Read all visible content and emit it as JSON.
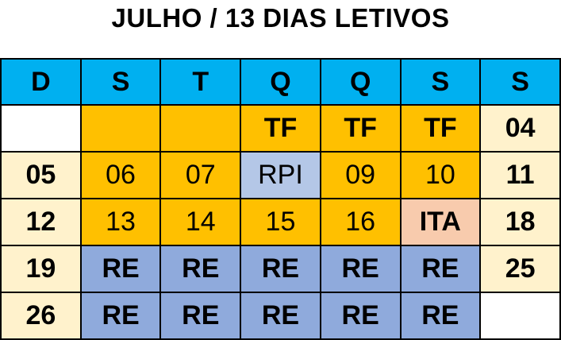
{
  "title": "JULHO / 13 DIAS LETIVOS",
  "headers": [
    "D",
    "S",
    "T",
    "Q",
    "Q",
    "S",
    "S"
  ],
  "rows": [
    [
      "",
      "",
      "",
      "TF",
      "TF",
      "TF",
      "04"
    ],
    [
      "05",
      "06",
      "07",
      "RPI",
      "09",
      "10",
      "11"
    ],
    [
      "12",
      "13",
      "14",
      "15",
      "16",
      "ITA",
      "18"
    ],
    [
      "19",
      "RE",
      "RE",
      "RE",
      "RE",
      "RE",
      "25"
    ],
    [
      "26",
      "RE",
      "RE",
      "RE",
      "RE",
      "RE",
      ""
    ]
  ],
  "colors": {
    "header": "#00b0f0",
    "weekend": "#fff2cc",
    "school_day": "#ffc000",
    "rpi": "#b4c7e7",
    "ita": "#f8cbad",
    "re": "#8faadc",
    "empty": "#ffffff"
  }
}
